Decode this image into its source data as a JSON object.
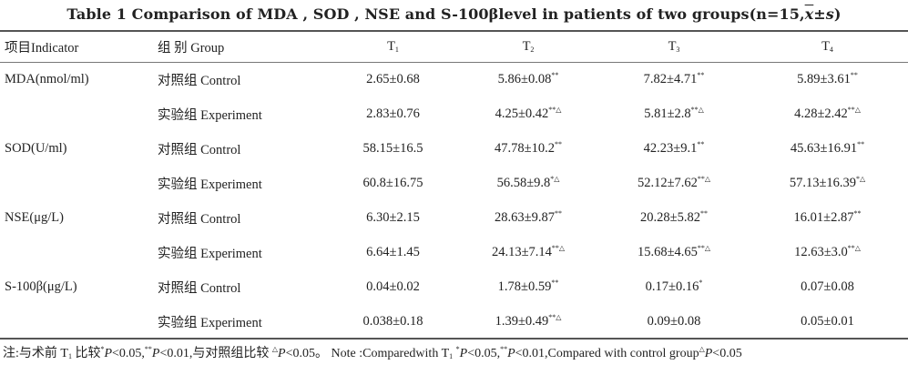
{
  "title": {
    "prefix": "Table 1    Comparison of MDA , SOD  , NSE and S-100βlevel in patients of two groups(n=15,",
    "xbar": "x",
    "pm": "±",
    "s": "s",
    "suffix": ")"
  },
  "header": {
    "indicator": "项目Indicator",
    "group": "组 别 Group",
    "t1": "T",
    "t1_sub": "1",
    "t2": "T",
    "t2_sub": "2",
    "t3": "T",
    "t3_sub": "3",
    "t4": "T",
    "t4_sub": "4"
  },
  "rows": [
    {
      "indicator": "MDA(nmol/ml)",
      "group": "对照组 Control",
      "t1": "2.65±0.68",
      "t1_mark": "",
      "t2": "5.86±0.08",
      "t2_mark": "**",
      "t3": "7.82±4.71",
      "t3_mark": "**",
      "t4": "5.89±3.61",
      "t4_mark": "**"
    },
    {
      "indicator": "",
      "group": "实验组 Experiment",
      "t1": "2.83±0.76",
      "t1_mark": "",
      "t2": "4.25±0.42",
      "t2_mark": "**△",
      "t3": "5.81±2.8",
      "t3_mark": "**△",
      "t4": "4.28±2.42",
      "t4_mark": "**△"
    },
    {
      "indicator": "SOD(U/ml)",
      "group": "对照组 Control",
      "t1": "58.15±16.5",
      "t1_mark": "",
      "t2": "47.78±10.2",
      "t2_mark": "**",
      "t3": "42.23±9.1",
      "t3_mark": "**",
      "t4": "45.63±16.91",
      "t4_mark": "**"
    },
    {
      "indicator": "",
      "group": "实验组 Experiment",
      "t1": "60.8±16.75",
      "t1_mark": "",
      "t2": "56.58±9.8",
      "t2_mark": "*△",
      "t3": "52.12±7.62",
      "t3_mark": "**△",
      "t4": "57.13±16.39",
      "t4_mark": "*△"
    },
    {
      "indicator": "NSE(μg/L)",
      "group": "对照组 Control",
      "t1": "6.30±2.15",
      "t1_mark": "",
      "t2": "28.63±9.87",
      "t2_mark": "**",
      "t3": "20.28±5.82",
      "t3_mark": "**",
      "t4": "16.01±2.87",
      "t4_mark": "**"
    },
    {
      "indicator": "",
      "group": "实验组 Experiment",
      "t1": "6.64±1.45",
      "t1_mark": "",
      "t2": "24.13±7.14",
      "t2_mark": "**△",
      "t3": "15.68±4.65",
      "t3_mark": "**△",
      "t4": "12.63±3.0",
      "t4_mark": "**△"
    },
    {
      "indicator": "S-100β(μg/L)",
      "group": "对照组 Control",
      "t1": "0.04±0.02",
      "t1_mark": "",
      "t2": "1.78±0.59",
      "t2_mark": "**",
      "t3": "0.17±0.16",
      "t3_mark": "*",
      "t4": "0.07±0.08",
      "t4_mark": ""
    },
    {
      "indicator": "",
      "group": "实验组 Experiment",
      "t1": "0.038±0.18",
      "t1_mark": "",
      "t2": "1.39±0.49",
      "t2_mark": "**△",
      "t3": "0.09±0.08",
      "t3_mark": "",
      "t4": "0.05±0.01",
      "t4_mark": ""
    }
  ],
  "note": {
    "zh_a": "注:与术前 T",
    "zh_a_sub": "1",
    "zh_b": " 比较",
    "star1": "*",
    "p": "P",
    "lt005": "<0.05,",
    "star2": "**",
    "lt001_zh": "<0.01,与对照组比较 ",
    "tri": "△",
    "lt005_zh": "<0.05。",
    "en_a": " Note :Comparedwith T",
    "en_a_sub": "1",
    "en_lt005": "<0.05,",
    "en_lt001": "<0.01,Compared with control group",
    "en_end": "<0.05"
  }
}
